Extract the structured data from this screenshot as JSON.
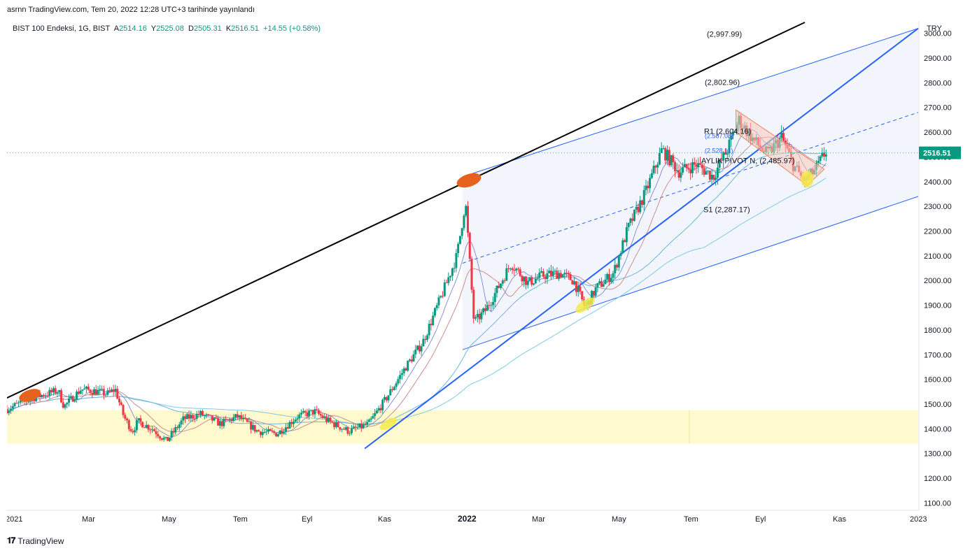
{
  "published": "asrnn TradingView.com, Tem 20, 2022 12:28 UTC+3 tarihinde yayınlandı",
  "legend": {
    "symbol": "BIST 100 Endeksi, 1G, BIST",
    "o_label": "A",
    "o": "2514.16",
    "h_label": "Y",
    "h": "2525.08",
    "l_label": "D",
    "l": "2505.31",
    "c_label": "K",
    "c": "2516.51",
    "change": "+14.55 (+0.58%)"
  },
  "currency": "TRY",
  "price_badge": "2516.51",
  "footer": "TradingView",
  "colors": {
    "up": "#089981",
    "down": "#f23645",
    "trend": "#2962ff",
    "black_line": "#000000",
    "zone": "#fff9c4",
    "channel": "#eef1fb",
    "wedge": "#f7c9b8",
    "orange_marker": "#e8621f",
    "yellow_marker": "#f5e94a"
  },
  "chart_data": {
    "type": "candlestick",
    "y_ticks": [
      "3000.00",
      "2900.00",
      "2800.00",
      "2700.00",
      "2600.00",
      "2500.00",
      "2400.00",
      "2300.00",
      "2200.00",
      "2100.00",
      "2000.00",
      "1900.00",
      "1800.00",
      "1700.00",
      "1600.00",
      "1500.00",
      "1400.00",
      "1300.00",
      "1200.00",
      "1100.00"
    ],
    "x_ticks": [
      "2021",
      "Mar",
      "May",
      "Tem",
      "Eyl",
      "Kas",
      "2022",
      "Mar",
      "May",
      "Tem",
      "Eyl",
      "Kas",
      "2023"
    ],
    "ylim": [
      1070,
      3050
    ],
    "price_path": [
      {
        "t": 0,
        "p": 1480
      },
      {
        "t": 0.9,
        "p": 1525
      },
      {
        "t": 1.8,
        "p": 1555
      },
      {
        "t": 2.0,
        "p": 1490
      },
      {
        "t": 2.6,
        "p": 1560
      },
      {
        "t": 3.2,
        "p": 1550
      },
      {
        "t": 3.5,
        "p": 1540
      },
      {
        "t": 3.8,
        "p": 1560
      },
      {
        "t": 4.1,
        "p": 1450
      },
      {
        "t": 4.4,
        "p": 1390
      },
      {
        "t": 4.6,
        "p": 1430
      },
      {
        "t": 5.1,
        "p": 1400
      },
      {
        "t": 5.6,
        "p": 1350
      },
      {
        "t": 6.2,
        "p": 1440
      },
      {
        "t": 6.8,
        "p": 1460
      },
      {
        "t": 7.5,
        "p": 1420
      },
      {
        "t": 8.1,
        "p": 1450
      },
      {
        "t": 8.8,
        "p": 1390
      },
      {
        "t": 9.5,
        "p": 1380
      },
      {
        "t": 10.2,
        "p": 1450
      },
      {
        "t": 10.8,
        "p": 1470
      },
      {
        "t": 11.3,
        "p": 1430
      },
      {
        "t": 12.0,
        "p": 1390
      },
      {
        "t": 12.7,
        "p": 1420
      },
      {
        "t": 13.3,
        "p": 1520
      },
      {
        "t": 14.0,
        "p": 1650
      },
      {
        "t": 14.6,
        "p": 1750
      },
      {
        "t": 15.3,
        "p": 1950
      },
      {
        "t": 15.8,
        "p": 2100
      },
      {
        "t": 16.1,
        "p": 2320
      },
      {
        "t": 16.4,
        "p": 1830
      },
      {
        "t": 16.8,
        "p": 1880
      },
      {
        "t": 17.2,
        "p": 1960
      },
      {
        "t": 17.7,
        "p": 2070
      },
      {
        "t": 18.3,
        "p": 1990
      },
      {
        "t": 18.8,
        "p": 2020
      },
      {
        "t": 19.4,
        "p": 2030
      },
      {
        "t": 19.9,
        "p": 2000
      },
      {
        "t": 20.3,
        "p": 1890
      },
      {
        "t": 20.7,
        "p": 1970
      },
      {
        "t": 21.3,
        "p": 2030
      },
      {
        "t": 21.8,
        "p": 2210
      },
      {
        "t": 22.4,
        "p": 2350
      },
      {
        "t": 23.0,
        "p": 2530
      },
      {
        "t": 23.6,
        "p": 2440
      },
      {
        "t": 24.2,
        "p": 2470
      },
      {
        "t": 24.8,
        "p": 2420
      },
      {
        "t": 25.3,
        "p": 2530
      },
      {
        "t": 25.7,
        "p": 2650
      },
      {
        "t": 26.2,
        "p": 2570
      },
      {
        "t": 26.7,
        "p": 2510
      },
      {
        "t": 27.2,
        "p": 2580
      },
      {
        "t": 27.6,
        "p": 2470
      },
      {
        "t": 28.0,
        "p": 2400
      },
      {
        "t": 28.4,
        "p": 2450
      },
      {
        "t": 28.8,
        "p": 2530
      }
    ],
    "horizontal_zone": {
      "from": 1340,
      "to": 1475
    },
    "annotations": [
      {
        "text": "(2,997.99)",
        "value": 2997.99
      },
      {
        "text": "(2,802.96)",
        "value": 2802.96
      },
      {
        "text": "R1 (2,604.16)",
        "value": 2604.16
      },
      {
        "text": "(2.587.08)",
        "value": 2587.08
      },
      {
        "text": "(2.528.11)",
        "value": 2528.11
      },
      {
        "text": "AYLIK PIVOT N, (2,485.97)",
        "value": 2485.97
      },
      {
        "text": "S1 (2,287.17)",
        "value": 2287.17
      }
    ],
    "xlabel": "",
    "ylabel": ""
  }
}
